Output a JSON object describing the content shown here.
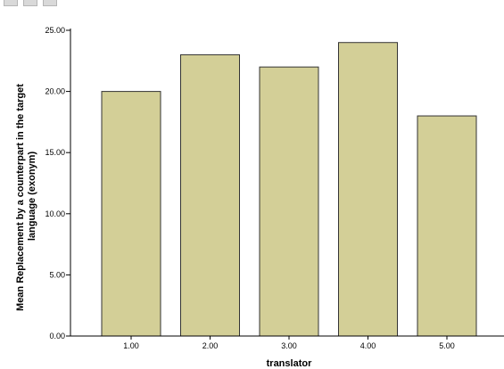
{
  "chart_data": {
    "type": "bar",
    "categories": [
      "1.00",
      "2.00",
      "3.00",
      "4.00",
      "5.00"
    ],
    "values": [
      20,
      23,
      22,
      24,
      18
    ],
    "xlabel": "translator",
    "ylabel_lines": [
      "Mean Replacement by a counterpart in the target",
      "language (exonym)"
    ],
    "ylim": [
      0,
      25
    ],
    "yticks": [
      "0.00",
      "5.00",
      "10.00",
      "15.00",
      "20.00",
      "25.00"
    ],
    "ytick_values": [
      0,
      5,
      10,
      15,
      20,
      25
    ],
    "bar_color": "#d3cf97",
    "bar_edge_color": "#333333",
    "grid": false
  }
}
